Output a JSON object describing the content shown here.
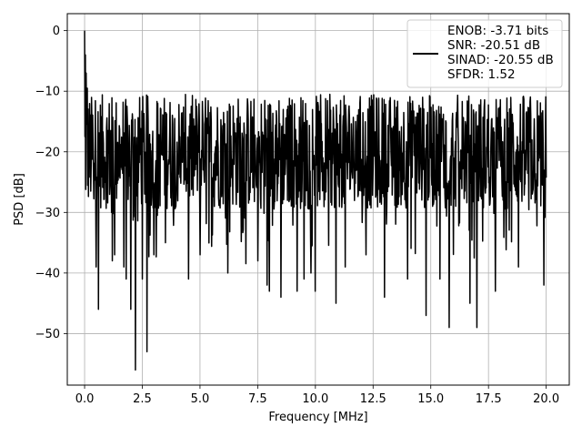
{
  "chart_data": {
    "type": "line",
    "title": "",
    "xlabel": "Frequency [MHz]",
    "ylabel": "PSD [dB]",
    "xlim": [
      -0.75,
      21.0
    ],
    "ylim": [
      -58.5,
      2.8
    ],
    "xticks": [
      0.0,
      2.5,
      5.0,
      7.5,
      10.0,
      12.5,
      15.0,
      17.5,
      20.0
    ],
    "xtick_labels": [
      "0.0",
      "2.5",
      "5.0",
      "7.5",
      "10.0",
      "12.5",
      "15.0",
      "17.5",
      "20.0"
    ],
    "yticks": [
      0,
      -10,
      -20,
      -30,
      -40,
      -50
    ],
    "ytick_labels": [
      "0",
      "−10",
      "−20",
      "−30",
      "−40",
      "−50"
    ],
    "grid": true,
    "legend_position": "top-right",
    "series": [
      {
        "color": "#000000",
        "legend_lines": [
          "ENOB: -3.71 bits",
          "SNR: -20.51 dB",
          "SINAD: -20.55 dB",
          "SFDR: 1.52"
        ],
        "x_range": [
          0.0,
          20.0
        ],
        "n_points": 1200,
        "peak_points": [
          [
            0.0,
            0.0
          ],
          [
            0.03,
            -4.0
          ],
          [
            0.07,
            -7.0
          ],
          [
            0.12,
            -9.5
          ]
        ],
        "deep_notches": [
          [
            0.5,
            -39
          ],
          [
            0.6,
            -46
          ],
          [
            1.2,
            -38
          ],
          [
            1.3,
            -37
          ],
          [
            1.7,
            -39
          ],
          [
            1.8,
            -41
          ],
          [
            2.0,
            -46
          ],
          [
            2.2,
            -56
          ],
          [
            2.5,
            -41
          ],
          [
            2.7,
            -53
          ],
          [
            3.0,
            -37
          ],
          [
            3.5,
            -35
          ],
          [
            4.5,
            -41
          ],
          [
            5.0,
            -37
          ],
          [
            6.2,
            -40
          ],
          [
            7.5,
            -38
          ],
          [
            7.9,
            -42
          ],
          [
            8.0,
            -43
          ],
          [
            8.5,
            -44
          ],
          [
            9.2,
            -43
          ],
          [
            9.5,
            -41
          ],
          [
            9.8,
            -40
          ],
          [
            10.0,
            -43
          ],
          [
            10.9,
            -45
          ],
          [
            11.3,
            -39
          ],
          [
            12.2,
            -37
          ],
          [
            13.0,
            -44
          ],
          [
            14.0,
            -41
          ],
          [
            14.8,
            -47
          ],
          [
            15.4,
            -41
          ],
          [
            15.8,
            -49
          ],
          [
            16.7,
            -45
          ],
          [
            17.0,
            -49
          ],
          [
            17.8,
            -43
          ],
          [
            18.8,
            -39
          ],
          [
            19.9,
            -42
          ]
        ],
        "noise_floor_mean": -20.0,
        "noise_floor_spread": 9.5
      }
    ]
  }
}
